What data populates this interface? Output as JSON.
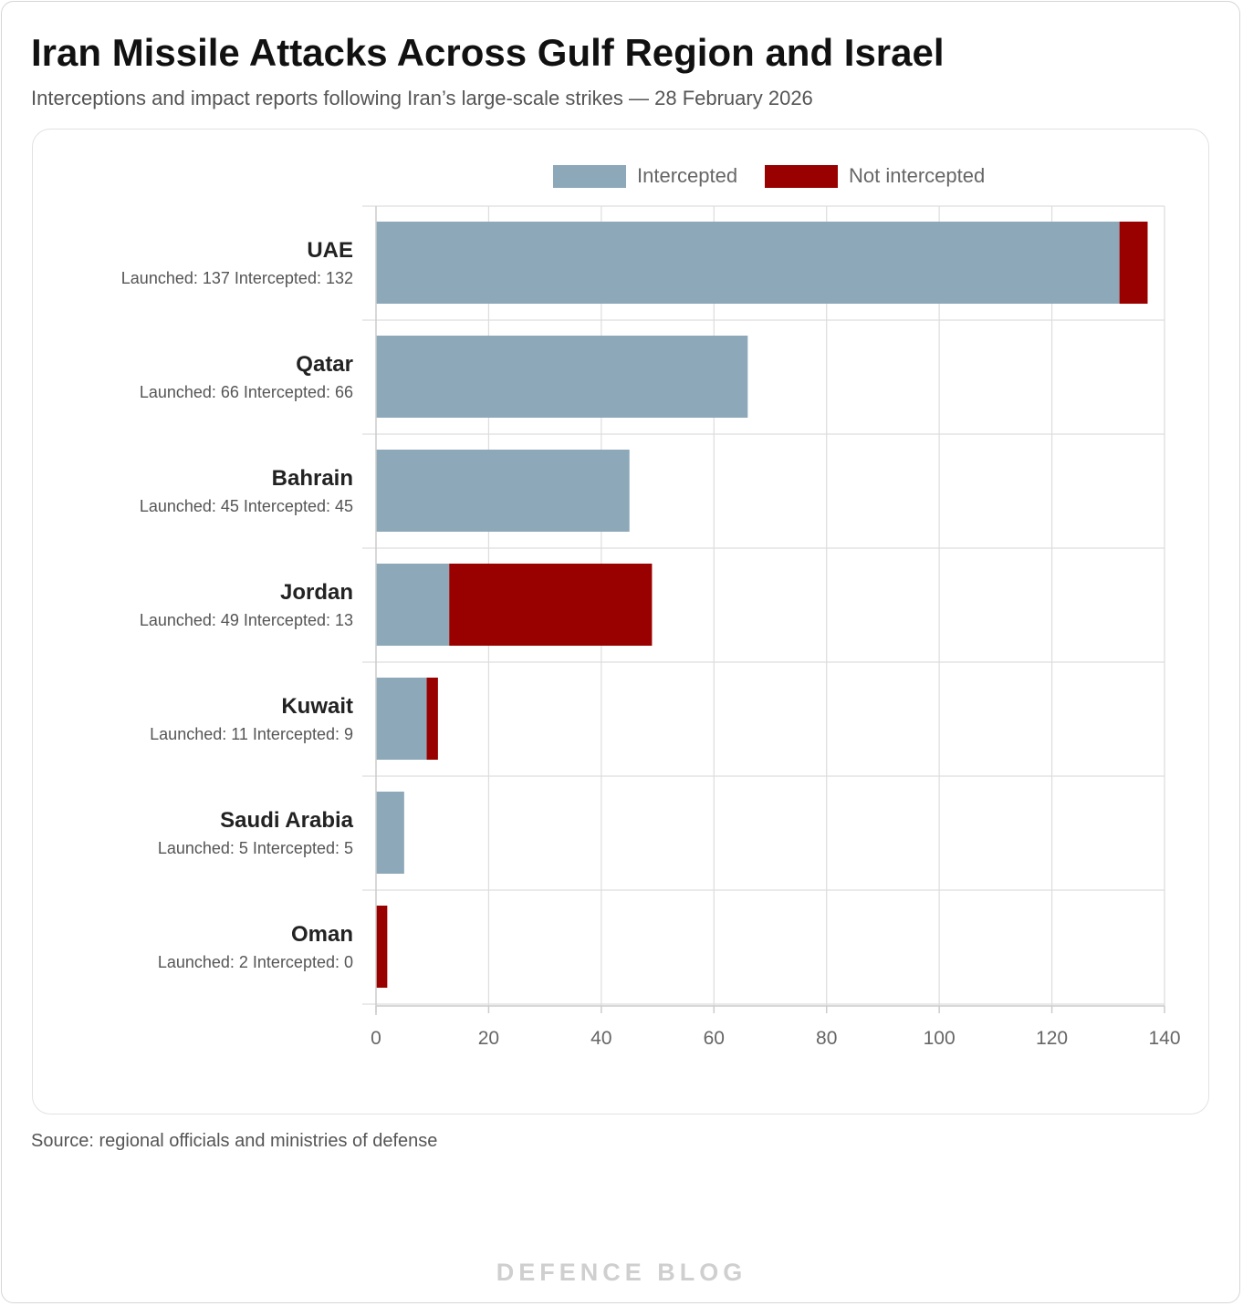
{
  "header": {
    "title": "Iran Missile Attacks Across Gulf Region and Israel",
    "subtitle": "Interceptions and impact reports following Iran’s large-scale strikes — 28 February 2026"
  },
  "footer": {
    "source": "Source: regional officials and ministries of defense",
    "watermark": "DEFENCE BLOG"
  },
  "colors": {
    "intercepted": "#8ca8b9",
    "not_intercepted": "#990000",
    "grid": "#dddddd",
    "axis_text": "#666666",
    "label_text": "#222222",
    "sub_label_text": "#555555"
  },
  "chart_data": {
    "type": "bar",
    "orientation": "horizontal",
    "stacked": true,
    "categories": [
      "UAE",
      "Qatar",
      "Bahrain",
      "Jordan",
      "Kuwait",
      "Saudi Arabia",
      "Oman"
    ],
    "category_details": [
      "Launched: 137  Intercepted: 132",
      "Launched: 66  Intercepted: 66",
      "Launched: 45  Intercepted: 45",
      "Launched: 49  Intercepted: 13",
      "Launched: 11  Intercepted: 9",
      "Launched: 5  Intercepted: 5",
      "Launched: 2  Intercepted: 0"
    ],
    "series": [
      {
        "name": "Intercepted",
        "values": [
          132,
          66,
          45,
          13,
          9,
          5,
          0
        ]
      },
      {
        "name": "Not intercepted",
        "values": [
          5,
          0,
          0,
          36,
          2,
          0,
          2
        ]
      }
    ],
    "xlim": [
      0,
      140
    ],
    "xticks": [
      0,
      20,
      40,
      60,
      80,
      100,
      120,
      140
    ],
    "grid": true,
    "legend_position": "top-center"
  }
}
